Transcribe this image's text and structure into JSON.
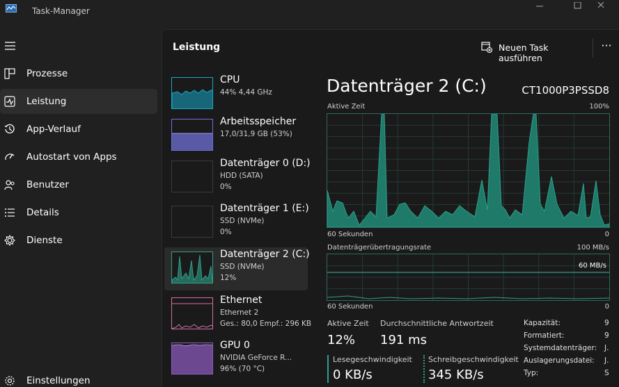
{
  "window": {
    "title": "Task-Manager"
  },
  "nav": {
    "items": [
      {
        "label": "Prozesse",
        "icon": "processes-icon"
      },
      {
        "label": "Leistung",
        "icon": "performance-icon",
        "active": true
      },
      {
        "label": "App-Verlauf",
        "icon": "history-icon"
      },
      {
        "label": "Autostart von Apps",
        "icon": "startup-icon"
      },
      {
        "label": "Benutzer",
        "icon": "users-icon"
      },
      {
        "label": "Details",
        "icon": "details-icon"
      },
      {
        "label": "Dienste",
        "icon": "services-icon"
      }
    ],
    "settings": "Einstellungen"
  },
  "header": {
    "title": "Leistung",
    "new_task": "Neuen Task ausführen",
    "more": "···"
  },
  "devices": [
    {
      "name": "CPU",
      "line1": "44% 4,44 GHz",
      "line2": "",
      "line3": "",
      "color": "#17a7c7"
    },
    {
      "name": "Arbeitsspeicher",
      "line1": "17,0/31,9 GB (53%)",
      "line2": "",
      "line3": "",
      "color": "#6f6fd6"
    },
    {
      "name": "Datenträger 0 (D:)",
      "line1": "HDD (SATA)",
      "line2": "0%",
      "line3": "",
      "color": "#2fa08a"
    },
    {
      "name": "Datenträger 1 (E:)",
      "line1": "SSD (NVMe)",
      "line2": "0%",
      "line3": "",
      "color": "#2fa08a"
    },
    {
      "name": "Datenträger 2 (C:)",
      "line1": "SSD (NVMe)",
      "line2": "12%",
      "line3": "",
      "color": "#2fa08a",
      "active": true
    },
    {
      "name": "Ethernet",
      "line1": "Ethernet 2",
      "line2": "Ges.: 80,0 Empf.: 296 KB",
      "line3": "",
      "color": "#d66fa8"
    },
    {
      "name": "GPU 0",
      "line1": "NVIDIA GeForce R...",
      "line2": "96% (70 °C)",
      "line3": "",
      "color": "#8e5cc2"
    }
  ],
  "detail": {
    "title": "Datenträger 2 (C:)",
    "model": "CT1000P3PSSD8",
    "graph1": {
      "label": "Aktive Zeit",
      "max": "100%",
      "xlabel": "60 Sekunden",
      "min": "0"
    },
    "graph2": {
      "label": "Datenträgerübertragungsrate",
      "max": "100 MB/s",
      "mid": "60 MB/s",
      "xlabel": "60 Sekunden",
      "min": "0"
    },
    "stats": {
      "active_label": "Aktive Zeit",
      "active_value": "12%",
      "resp_label": "Durchschnittliche Antwortzeit",
      "resp_value": "191 ms",
      "read_label": "Lesegeschwindigkeit",
      "read_value": "0 KB/s",
      "write_label": "Schreibgeschwindigkeit",
      "write_value": "345 KB/s"
    },
    "props": [
      {
        "k": "Kapazität:",
        "v": "9"
      },
      {
        "k": "Formatiert:",
        "v": "9"
      },
      {
        "k": "Systemdatenträger:",
        "v": "J."
      },
      {
        "k": "Auslagerungsdatei:",
        "v": "J."
      },
      {
        "k": "Typ:",
        "v": "S"
      }
    ]
  },
  "colors": {
    "accent": "#2fa08a",
    "accent_fill": "#1f7a6a",
    "bg": "#1a1a1a"
  }
}
